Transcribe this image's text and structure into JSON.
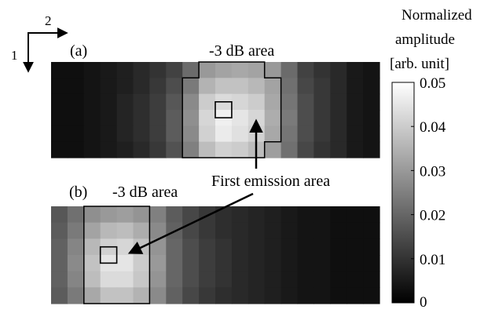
{
  "chart_data": {
    "type": "heatmap",
    "colormap": "gray",
    "colorbar": {
      "label_lines": [
        "Normalized",
        "amplitude",
        "[arb. unit]"
      ],
      "range": [
        0,
        0.05
      ],
      "ticks": [
        "0",
        "0.01",
        "0.02",
        "0.03",
        "0.04",
        "0.05"
      ]
    },
    "axes_indicator": {
      "axis_1": "1",
      "axis_2": "2"
    },
    "annotation": "First emission area",
    "panels": [
      {
        "label": "(a)",
        "region_label": "-3 dB area",
        "values": [
          [
            0.003,
            0.003,
            0.004,
            0.005,
            0.006,
            0.008,
            0.01,
            0.013,
            0.021,
            0.03,
            0.032,
            0.033,
            0.032,
            0.03,
            0.021,
            0.013,
            0.01,
            0.008,
            0.005,
            0.004
          ],
          [
            0.003,
            0.003,
            0.004,
            0.005,
            0.006,
            0.008,
            0.011,
            0.015,
            0.024,
            0.035,
            0.038,
            0.038,
            0.036,
            0.032,
            0.022,
            0.014,
            0.011,
            0.008,
            0.005,
            0.004
          ],
          [
            0.003,
            0.003,
            0.004,
            0.005,
            0.007,
            0.009,
            0.012,
            0.017,
            0.027,
            0.04,
            0.043,
            0.042,
            0.04,
            0.033,
            0.023,
            0.015,
            0.011,
            0.008,
            0.005,
            0.004
          ],
          [
            0.003,
            0.003,
            0.004,
            0.005,
            0.007,
            0.009,
            0.012,
            0.018,
            0.028,
            0.042,
            0.047,
            0.045,
            0.042,
            0.034,
            0.024,
            0.015,
            0.011,
            0.008,
            0.005,
            0.004
          ],
          [
            0.003,
            0.003,
            0.004,
            0.005,
            0.007,
            0.009,
            0.012,
            0.018,
            0.027,
            0.041,
            0.046,
            0.044,
            0.041,
            0.033,
            0.023,
            0.015,
            0.011,
            0.008,
            0.005,
            0.004
          ],
          [
            0.003,
            0.003,
            0.004,
            0.005,
            0.006,
            0.008,
            0.011,
            0.016,
            0.025,
            0.037,
            0.041,
            0.04,
            0.037,
            0.031,
            0.022,
            0.014,
            0.01,
            0.008,
            0.005,
            0.004
          ]
        ],
        "region_polygon": [
          [
            9,
            0
          ],
          [
            13,
            0
          ],
          [
            13,
            1
          ],
          [
            14,
            1
          ],
          [
            14,
            5
          ],
          [
            13,
            5
          ],
          [
            13,
            6
          ],
          [
            8,
            6
          ],
          [
            8,
            1
          ],
          [
            9,
            1
          ]
        ],
        "marker_cell": [
          10,
          3
        ]
      },
      {
        "label": "(b)",
        "region_label": "-3 dB area",
        "values": [
          [
            0.017,
            0.022,
            0.028,
            0.03,
            0.031,
            0.029,
            0.025,
            0.018,
            0.014,
            0.011,
            0.009,
            0.008,
            0.007,
            0.006,
            0.005,
            0.004,
            0.004,
            0.003,
            0.003,
            0.003
          ],
          [
            0.018,
            0.024,
            0.032,
            0.036,
            0.037,
            0.034,
            0.027,
            0.019,
            0.014,
            0.011,
            0.009,
            0.008,
            0.007,
            0.006,
            0.005,
            0.004,
            0.004,
            0.003,
            0.003,
            0.003
          ],
          [
            0.019,
            0.026,
            0.036,
            0.041,
            0.042,
            0.038,
            0.029,
            0.02,
            0.015,
            0.012,
            0.01,
            0.008,
            0.007,
            0.006,
            0.005,
            0.004,
            0.004,
            0.003,
            0.003,
            0.003
          ],
          [
            0.019,
            0.027,
            0.038,
            0.045,
            0.045,
            0.04,
            0.03,
            0.02,
            0.015,
            0.012,
            0.01,
            0.008,
            0.007,
            0.006,
            0.005,
            0.004,
            0.004,
            0.003,
            0.003,
            0.003
          ],
          [
            0.019,
            0.026,
            0.037,
            0.043,
            0.043,
            0.039,
            0.029,
            0.02,
            0.015,
            0.012,
            0.01,
            0.008,
            0.007,
            0.006,
            0.005,
            0.004,
            0.004,
            0.003,
            0.003,
            0.003
          ],
          [
            0.018,
            0.024,
            0.033,
            0.038,
            0.038,
            0.035,
            0.027,
            0.019,
            0.014,
            0.011,
            0.009,
            0.008,
            0.007,
            0.006,
            0.005,
            0.004,
            0.004,
            0.003,
            0.003,
            0.003
          ]
        ],
        "region_polygon": [
          [
            2,
            0
          ],
          [
            6,
            0
          ],
          [
            6,
            1
          ],
          [
            6,
            6
          ],
          [
            2,
            6
          ]
        ],
        "marker_cell": [
          3,
          3
        ]
      }
    ]
  }
}
